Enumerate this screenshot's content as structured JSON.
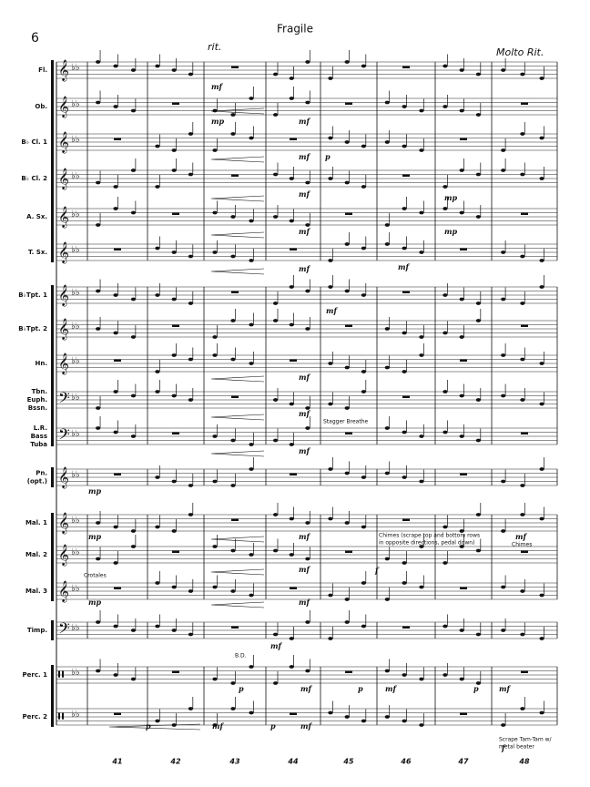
{
  "page_number": "6",
  "title": "Fragile",
  "tempo_marks": [
    "rit.",
    "Molto Rit."
  ],
  "staves": [
    {
      "name": [
        "Fl."
      ]
    },
    {
      "name": [
        "Ob."
      ]
    },
    {
      "name": [
        "B♭ Cl. 1"
      ]
    },
    {
      "name": [
        "B♭ Cl. 2"
      ]
    },
    {
      "name": [
        "A. Sx."
      ]
    },
    {
      "name": [
        "T. Sx."
      ]
    },
    {
      "name": [
        "B♭Tpt. 1"
      ]
    },
    {
      "name": [
        "B♭Tpt. 2"
      ]
    },
    {
      "name": [
        "Hn."
      ]
    },
    {
      "name": [
        "Tbn.",
        "Euph.",
        "Bssn."
      ]
    },
    {
      "name": [
        "L.R.",
        "Bass",
        "Tuba"
      ]
    },
    {
      "name": [
        "Pn.",
        "(opt.)"
      ]
    },
    {
      "name": [
        "Mal. 1"
      ]
    },
    {
      "name": [
        "Mal. 2"
      ]
    },
    {
      "name": [
        "Mal. 3"
      ]
    },
    {
      "name": [
        "Timp."
      ]
    },
    {
      "name": [
        "Perc. 1"
      ]
    },
    {
      "name": [
        "Perc. 2"
      ]
    }
  ],
  "measure_numbers": [
    41,
    42,
    43,
    44,
    45,
    46,
    47,
    48
  ],
  "annotations": [
    "Stagger Breathe",
    "Chimes (scrape top and bottom rows",
    "in opposite directions, pedal down)",
    "Chimes",
    "Crotales",
    "B.D.",
    "Scrape Tam-Tam w/",
    "metal beater"
  ],
  "dynamics": [
    "mf",
    "mp",
    "mf",
    "mf",
    "p",
    "mf",
    "mp",
    "mf",
    "mp",
    "mf",
    "mf",
    "mf",
    "mf",
    "mf",
    "mf",
    "mp",
    "mp",
    "mf",
    "mf",
    "mf",
    "f",
    "mp",
    "mf",
    "mf",
    "p",
    "mf",
    "p",
    "mf",
    "p",
    "mf",
    "p",
    "mf",
    "p",
    "mf",
    "f"
  ]
}
